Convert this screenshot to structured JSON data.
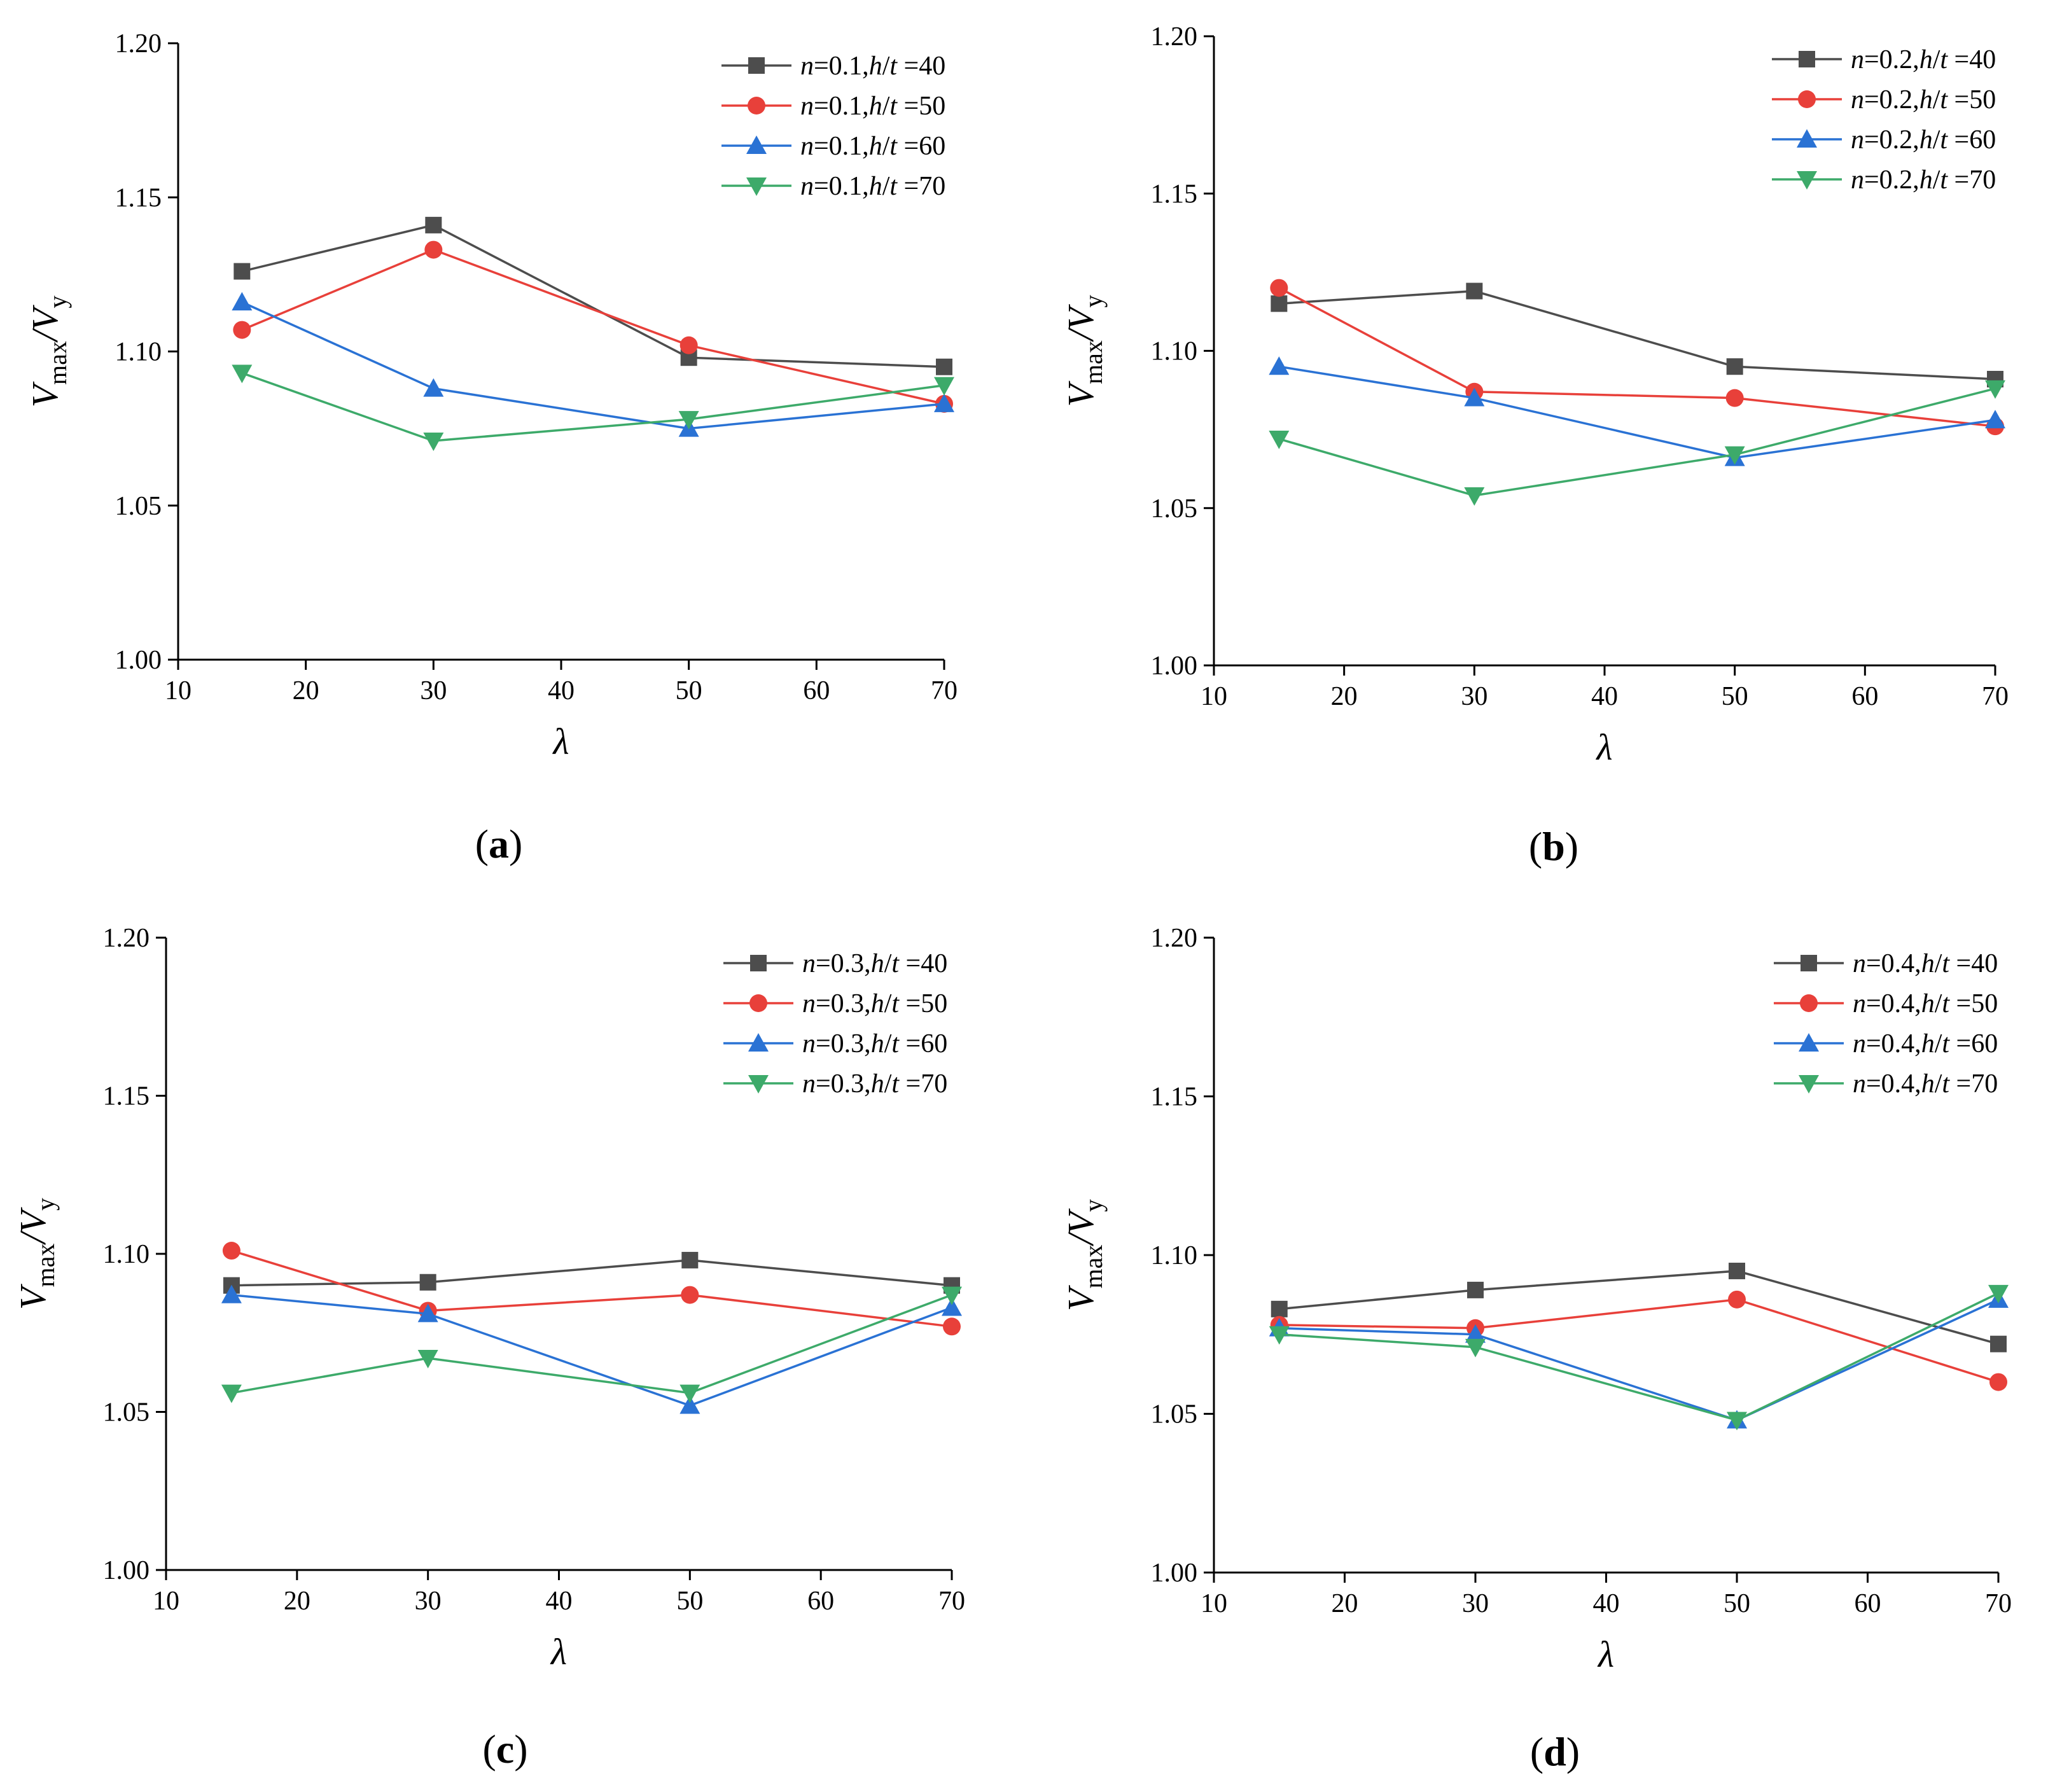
{
  "colors": {
    "h40": "#4d4d4d",
    "h50": "#e8403a",
    "h60": "#2a72d4",
    "h70": "#3daa6a"
  },
  "chart_data": [
    {
      "type": "line",
      "panel": "a",
      "xlabel": "λ",
      "ylabel": {
        "v": "V",
        "sub1": "max",
        "slash": "/",
        "v2": "V",
        "sub2": "y"
      },
      "xlim": [
        10,
        70
      ],
      "ylim": [
        1.0,
        1.2
      ],
      "xticks": [
        "10",
        "20",
        "30",
        "40",
        "50",
        "60",
        "70"
      ],
      "yticks": [
        "1.00",
        "1.05",
        "1.10",
        "1.15",
        "1.20"
      ],
      "x": [
        15,
        30,
        50,
        70
      ],
      "series": [
        {
          "n": "n",
          "eq": "=0.1,",
          "h": "h",
          "sl": "/",
          "t": "t",
          "val": " =40",
          "marker": "square",
          "color_key": "h40",
          "values": [
            1.126,
            1.141,
            1.098,
            1.095
          ]
        },
        {
          "n": "n",
          "eq": "=0.1,",
          "h": "h",
          "sl": "/",
          "t": "t",
          "val": " =50",
          "marker": "circle",
          "color_key": "h50",
          "values": [
            1.107,
            1.133,
            1.102,
            1.083
          ]
        },
        {
          "n": "n",
          "eq": "=0.1,",
          "h": "h",
          "sl": "/",
          "t": "t",
          "val": " =60",
          "marker": "triangle-up",
          "color_key": "h60",
          "values": [
            1.116,
            1.088,
            1.075,
            1.083
          ]
        },
        {
          "n": "n",
          "eq": "=0.1,",
          "h": "h",
          "sl": "/",
          "t": "t",
          "val": " =70",
          "marker": "triangle-down",
          "color_key": "h70",
          "values": [
            1.093,
            1.071,
            1.078,
            1.089
          ]
        }
      ],
      "label": {
        "open": "(",
        "letter": "a",
        "close": ")"
      }
    },
    {
      "type": "line",
      "panel": "b",
      "xlabel": "λ",
      "ylabel": {
        "v": "V",
        "sub1": "max",
        "slash": "/",
        "v2": "V",
        "sub2": "y"
      },
      "xlim": [
        10,
        70
      ],
      "ylim": [
        1.0,
        1.2
      ],
      "xticks": [
        "10",
        "20",
        "30",
        "40",
        "50",
        "60",
        "70"
      ],
      "yticks": [
        "1.00",
        "1.05",
        "1.10",
        "1.15",
        "1.20"
      ],
      "x": [
        15,
        30,
        50,
        70
      ],
      "series": [
        {
          "n": "n",
          "eq": "=0.2,",
          "h": "h",
          "sl": "/",
          "t": "t",
          "val": " =40",
          "marker": "square",
          "color_key": "h40",
          "values": [
            1.115,
            1.119,
            1.095,
            1.091
          ]
        },
        {
          "n": "n",
          "eq": "=0.2,",
          "h": "h",
          "sl": "/",
          "t": "t",
          "val": " =50",
          "marker": "circle",
          "color_key": "h50",
          "values": [
            1.12,
            1.087,
            1.085,
            1.076
          ]
        },
        {
          "n": "n",
          "eq": "=0.2,",
          "h": "h",
          "sl": "/",
          "t": "t",
          "val": " =60",
          "marker": "triangle-up",
          "color_key": "h60",
          "values": [
            1.095,
            1.085,
            1.066,
            1.078
          ]
        },
        {
          "n": "n",
          "eq": "=0.2,",
          "h": "h",
          "sl": "/",
          "t": "t",
          "val": " =70",
          "marker": "triangle-down",
          "color_key": "h70",
          "values": [
            1.072,
            1.054,
            1.067,
            1.088
          ]
        }
      ],
      "label": {
        "open": "(",
        "letter": "b",
        "close": ")"
      }
    },
    {
      "type": "line",
      "panel": "c",
      "xlabel": "λ",
      "ylabel": {
        "v": "V",
        "sub1": "max",
        "slash": "/",
        "v2": "V",
        "sub2": "y"
      },
      "xlim": [
        10,
        70
      ],
      "ylim": [
        1.0,
        1.2
      ],
      "xticks": [
        "10",
        "20",
        "30",
        "40",
        "50",
        "60",
        "70"
      ],
      "yticks": [
        "1.00",
        "1.05",
        "1.10",
        "1.15",
        "1.20"
      ],
      "x": [
        15,
        30,
        50,
        70
      ],
      "series": [
        {
          "n": "n",
          "eq": "=0.3,",
          "h": "h",
          "sl": "/",
          "t": "t",
          "val": " =40",
          "marker": "square",
          "color_key": "h40",
          "values": [
            1.09,
            1.091,
            1.098,
            1.09
          ]
        },
        {
          "n": "n",
          "eq": "=0.3,",
          "h": "h",
          "sl": "/",
          "t": "t",
          "val": " =50",
          "marker": "circle",
          "color_key": "h50",
          "values": [
            1.101,
            1.082,
            1.087,
            1.077
          ]
        },
        {
          "n": "n",
          "eq": "=0.3,",
          "h": "h",
          "sl": "/",
          "t": "t",
          "val": " =60",
          "marker": "triangle-up",
          "color_key": "h60",
          "values": [
            1.087,
            1.081,
            1.052,
            1.083
          ]
        },
        {
          "n": "n",
          "eq": "=0.3,",
          "h": "h",
          "sl": "/",
          "t": "t",
          "val": " =70",
          "marker": "triangle-down",
          "color_key": "h70",
          "values": [
            1.056,
            1.067,
            1.056,
            1.087
          ]
        }
      ],
      "label": {
        "open": "(",
        "letter": "c",
        "close": ")"
      }
    },
    {
      "type": "line",
      "panel": "d",
      "xlabel": "λ",
      "ylabel": {
        "v": "V",
        "sub1": "max",
        "slash": "/",
        "v2": "V",
        "sub2": "y"
      },
      "xlim": [
        10,
        70
      ],
      "ylim": [
        1.0,
        1.2
      ],
      "xticks": [
        "10",
        "20",
        "30",
        "40",
        "50",
        "60",
        "70"
      ],
      "yticks": [
        "1.00",
        "1.05",
        "1.10",
        "1.15",
        "1.20"
      ],
      "x": [
        15,
        30,
        50,
        70
      ],
      "series": [
        {
          "n": "n",
          "eq": "=0.4,",
          "h": "h",
          "sl": "/",
          "t": "t",
          "val": " =40",
          "marker": "square",
          "color_key": "h40",
          "values": [
            1.083,
            1.089,
            1.095,
            1.072
          ]
        },
        {
          "n": "n",
          "eq": "=0.4,",
          "h": "h",
          "sl": "/",
          "t": "t",
          "val": " =50",
          "marker": "circle",
          "color_key": "h50",
          "values": [
            1.078,
            1.077,
            1.086,
            1.06
          ]
        },
        {
          "n": "n",
          "eq": "=0.4,",
          "h": "h",
          "sl": "/",
          "t": "t",
          "val": " =60",
          "marker": "triangle-up",
          "color_key": "h60",
          "values": [
            1.077,
            1.075,
            1.048,
            1.086
          ]
        },
        {
          "n": "n",
          "eq": "=0.4,",
          "h": "h",
          "sl": "/",
          "t": "t",
          "val": " =70",
          "marker": "triangle-down",
          "color_key": "h70",
          "values": [
            1.075,
            1.071,
            1.048,
            1.088
          ]
        }
      ],
      "label": {
        "open": "(",
        "letter": "d",
        "close": ")"
      }
    }
  ]
}
